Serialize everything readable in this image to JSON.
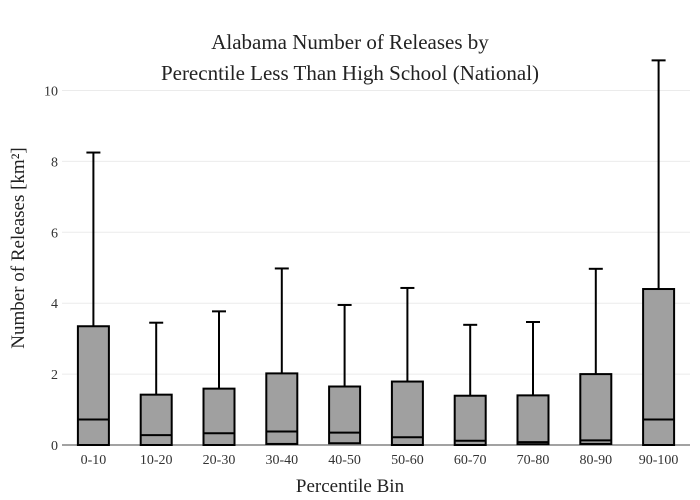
{
  "chart_data": {
    "type": "box",
    "title_line1": "Alabama Number of Releases by",
    "title_line2": "Perecntile Less Than High School (National)",
    "xlabel": "Percentile Bin",
    "ylabel": "Number of Releases  [km²]",
    "ylim": [
      0,
      11
    ],
    "yticks": [
      0,
      2,
      4,
      6,
      8,
      10
    ],
    "grid": true,
    "box_color": "#a0a0a0",
    "categories": [
      "0-10",
      "10-20",
      "20-30",
      "30-40",
      "40-50",
      "50-60",
      "60-70",
      "70-80",
      "80-90",
      "90-100"
    ],
    "boxes": [
      {
        "min": 0,
        "q1": 0,
        "median": 0.72,
        "q3": 3.35,
        "max": 8.25
      },
      {
        "min": 0,
        "q1": 0,
        "median": 0.28,
        "q3": 1.42,
        "max": 3.45
      },
      {
        "min": 0,
        "q1": 0,
        "median": 0.33,
        "q3": 1.59,
        "max": 3.77
      },
      {
        "min": 0,
        "q1": 0.03,
        "median": 0.38,
        "q3": 2.02,
        "max": 4.98
      },
      {
        "min": 0,
        "q1": 0.05,
        "median": 0.35,
        "q3": 1.65,
        "max": 3.95
      },
      {
        "min": 0,
        "q1": 0,
        "median": 0.22,
        "q3": 1.79,
        "max": 4.43
      },
      {
        "min": 0,
        "q1": 0,
        "median": 0.12,
        "q3": 1.39,
        "max": 3.39
      },
      {
        "min": 0,
        "q1": 0.02,
        "median": 0.08,
        "q3": 1.4,
        "max": 3.47
      },
      {
        "min": 0,
        "q1": 0.03,
        "median": 0.13,
        "q3": 2.0,
        "max": 4.97
      },
      {
        "min": 0,
        "q1": 0,
        "median": 0.72,
        "q3": 4.4,
        "max": 10.85
      }
    ]
  }
}
